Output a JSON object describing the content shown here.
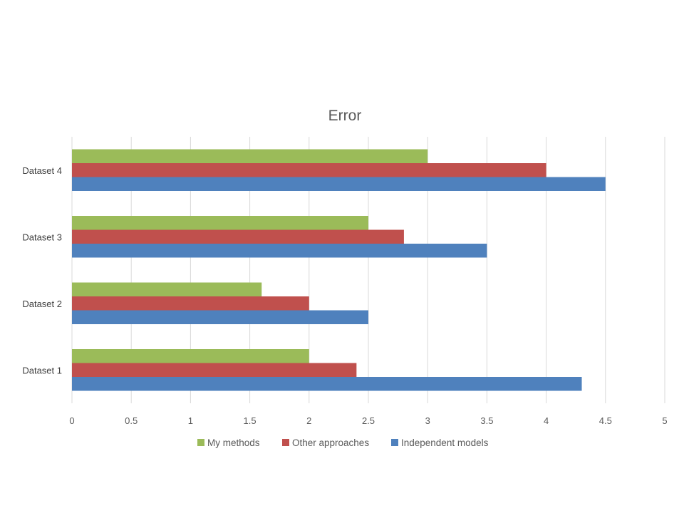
{
  "chart_data": {
    "type": "bar",
    "orientation": "horizontal",
    "title": "Error",
    "xlabel": "",
    "ylabel": "",
    "xlim": [
      0,
      5
    ],
    "x_ticks": [
      "0",
      "0.5",
      "1",
      "1.5",
      "2",
      "2.5",
      "3",
      "3.5",
      "4",
      "4.5",
      "5"
    ],
    "categories": [
      "Dataset 1",
      "Dataset 2",
      "Dataset 3",
      "Dataset 4"
    ],
    "series": [
      {
        "name": "My methods",
        "color": "#9bbb59",
        "values": [
          2.0,
          1.6,
          2.5,
          3.0
        ]
      },
      {
        "name": "Other approaches",
        "color": "#c0504d",
        "values": [
          2.4,
          2.0,
          2.8,
          4.0
        ]
      },
      {
        "name": "Independent models",
        "color": "#4f81bd",
        "values": [
          4.3,
          2.5,
          3.5,
          4.5
        ]
      }
    ],
    "grid": "vertical major gridlines",
    "legend_position": "bottom"
  }
}
